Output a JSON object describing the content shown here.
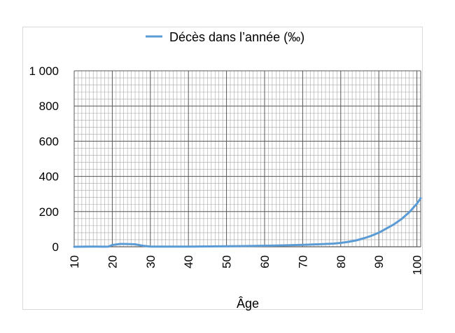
{
  "chart_data": {
    "type": "line",
    "title": "",
    "xlabel": "Âge",
    "ylabel": "",
    "legend": {
      "position": "top",
      "entries": [
        "Décès dans l’année (‰)"
      ]
    },
    "grid": {
      "major": true,
      "minor": true
    },
    "xlim": [
      10,
      101
    ],
    "ylim": [
      0,
      1000
    ],
    "y_ticks": [
      0,
      200,
      400,
      600,
      800,
      1000
    ],
    "y_tick_labels": [
      "0",
      "200",
      "400",
      "600",
      "800",
      "1 000"
    ],
    "x_ticks": [
      10,
      20,
      30,
      40,
      50,
      60,
      70,
      80,
      90,
      100
    ],
    "x_tick_labels": [
      "10",
      "20",
      "30",
      "40",
      "50",
      "60",
      "70",
      "80",
      "90",
      "100"
    ],
    "series": [
      {
        "name": "Décès dans l’année (‰)",
        "color": "#5b9bd5",
        "x": [
          10,
          12,
          14,
          16,
          18,
          19,
          20,
          22,
          23,
          25,
          26,
          28,
          30,
          35,
          40,
          45,
          50,
          55,
          60,
          65,
          70,
          75,
          78,
          80,
          82,
          84,
          86,
          88,
          90,
          92,
          94,
          96,
          98,
          100,
          101
        ],
        "values": [
          0,
          0.5,
          1,
          1,
          0.5,
          1,
          10,
          16,
          16,
          15,
          14,
          6,
          1,
          1,
          1,
          2,
          3,
          4,
          6,
          8,
          11,
          15,
          18,
          22,
          28,
          36,
          48,
          62,
          80,
          104,
          128,
          158,
          196,
          245,
          276
        ]
      }
    ]
  }
}
